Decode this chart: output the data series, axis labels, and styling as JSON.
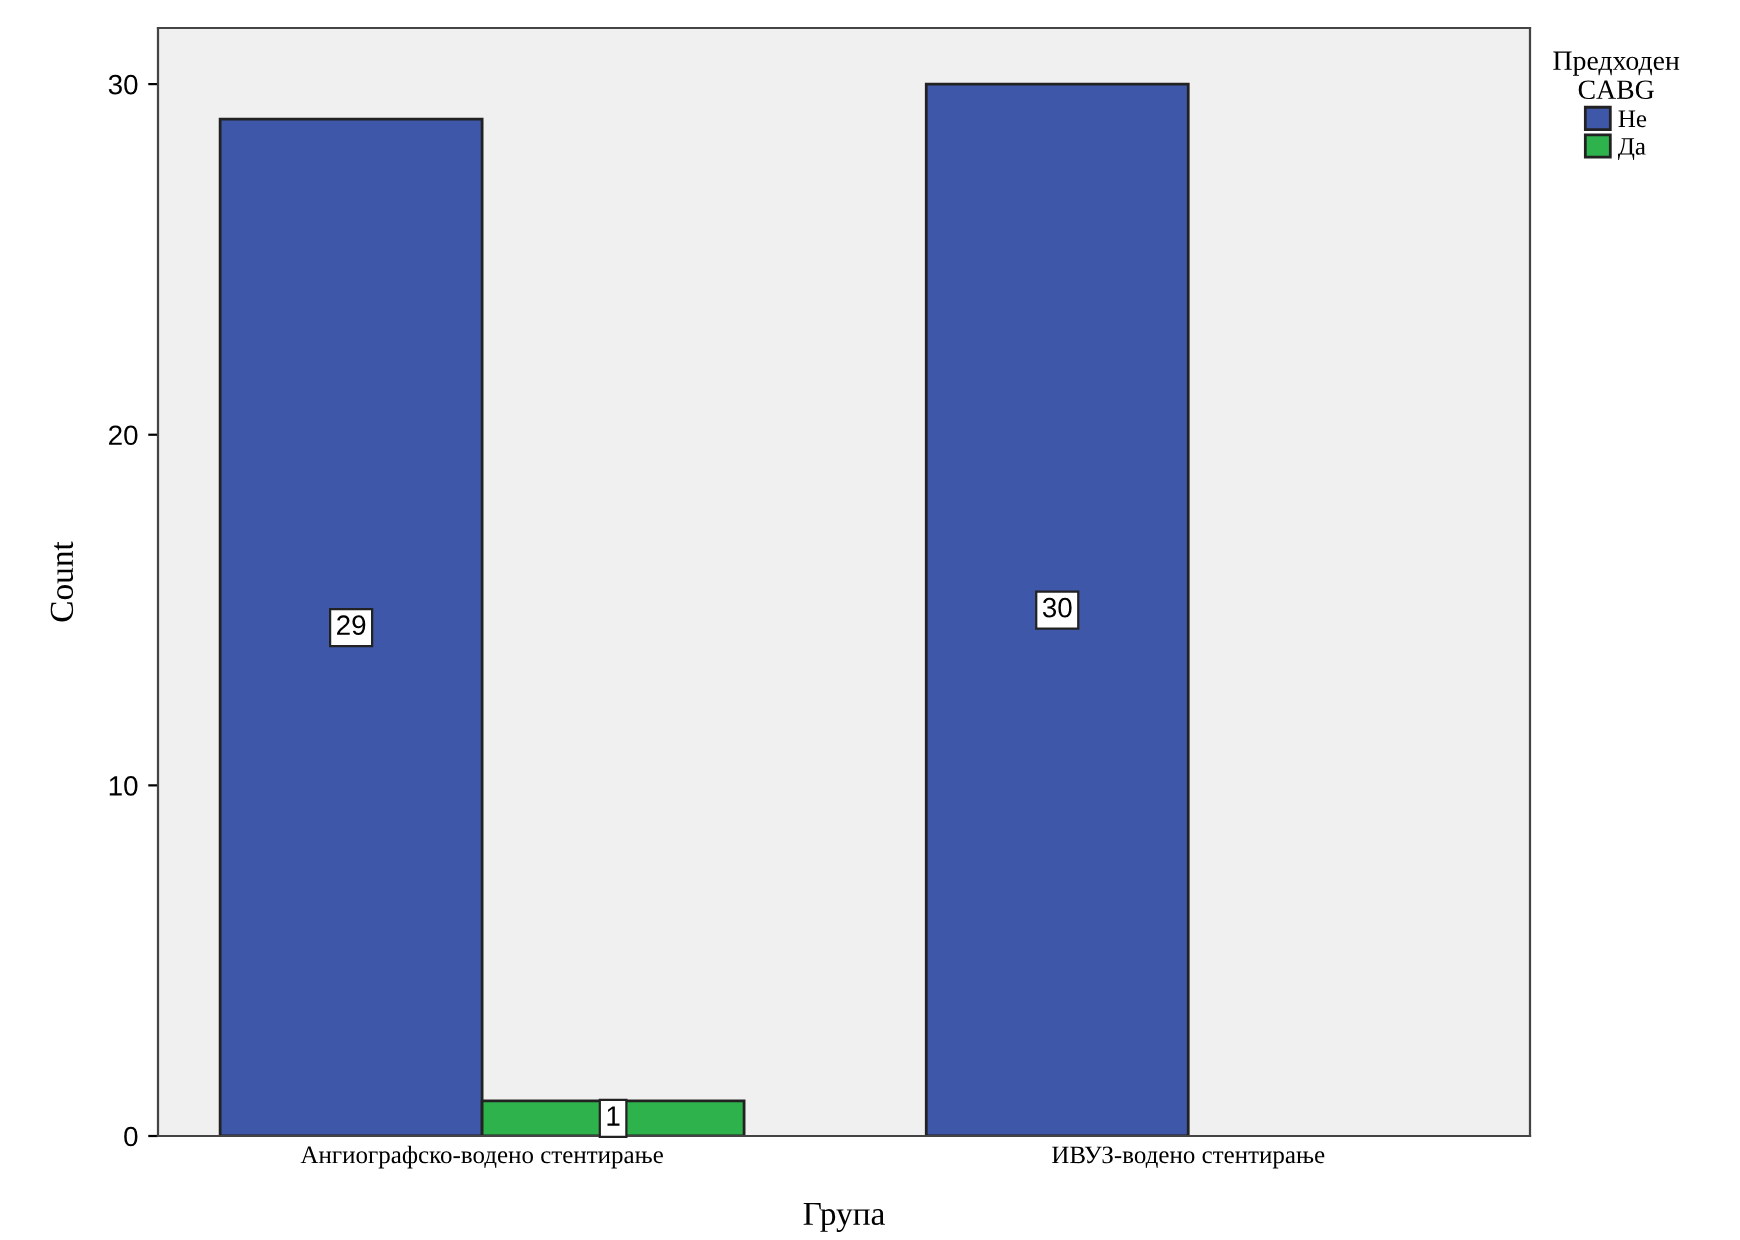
{
  "chart_data": {
    "type": "bar",
    "xlabel": "Група",
    "ylabel": "Count",
    "legend_title": "Предходен\nCABG",
    "categories": [
      "Ангиографско-водено стентирање",
      "ИВУЗ-водено стентирање"
    ],
    "series": [
      {
        "name": "Не",
        "color": "#3f57a9",
        "values": [
          29,
          30
        ]
      },
      {
        "name": "Да",
        "color": "#2eb24c",
        "values": [
          1,
          null
        ]
      }
    ],
    "ylim": [
      0,
      31.6
    ],
    "yticks": [
      0,
      10,
      20,
      30
    ],
    "grid": false,
    "legend": "right",
    "data_labels": true
  }
}
